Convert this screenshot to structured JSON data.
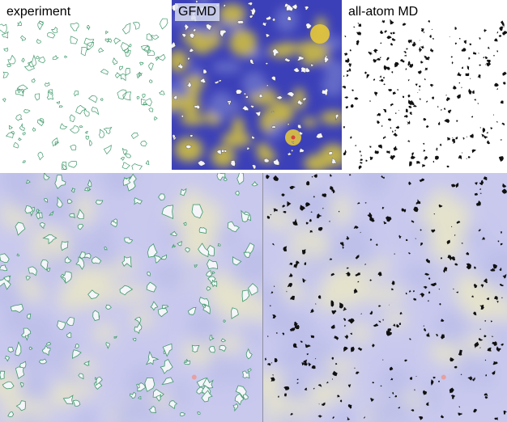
{
  "panels": {
    "experiment": {
      "label": "experiment"
    },
    "gfmd": {
      "label": "GFMD"
    },
    "allatom": {
      "label": "all-atom MD"
    },
    "overlay_left": {
      "description": ""
    },
    "overlay_right": {
      "description": ""
    }
  },
  "colors": {
    "contact_outline": "#3f9a6b",
    "gfmd_base": "#3c40b8",
    "gfmd_high": "#d7c53a",
    "atom_contact": "#101010",
    "overlay_base": "#c9c9ee"
  }
}
